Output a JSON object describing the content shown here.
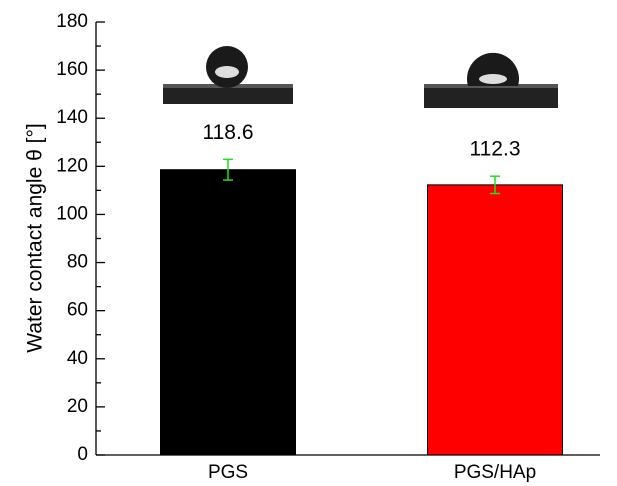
{
  "chart_data": {
    "type": "bar",
    "y_label": "Water contact angle θ [°]",
    "categories": [
      "PGS",
      "PGS/HAp"
    ],
    "values": [
      118.6,
      112.3
    ],
    "errors": [
      4.3,
      3.6
    ],
    "colors": [
      "#000000",
      "#ff0000"
    ],
    "error_color": "#22dd22",
    "ylim": [
      0,
      180
    ],
    "yticks": [
      0,
      20,
      40,
      60,
      80,
      100,
      120,
      140,
      160,
      180
    ],
    "grid": false
  }
}
